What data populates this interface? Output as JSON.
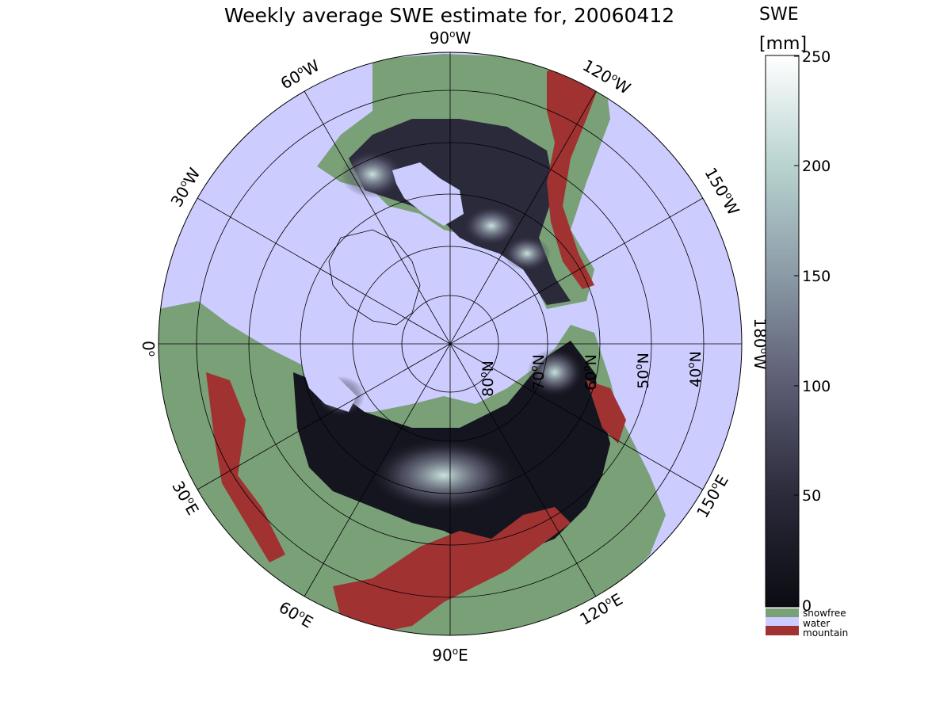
{
  "title": "Weekly average SWE estimate for, 20060412",
  "colorbar": {
    "label_line1": "SWE",
    "label_line2": "[mm]",
    "ticks": [
      "0",
      "50",
      "100",
      "150",
      "200",
      "250"
    ],
    "range": [
      0,
      250
    ],
    "colors": [
      "#0b0b12",
      "#2a2a3a",
      "#5b5b72",
      "#8a9aa6",
      "#b8d3d0",
      "#ffffff"
    ]
  },
  "key": [
    {
      "label": "snowfree",
      "color": "#7aa078"
    },
    {
      "label": "water",
      "color": "#ccccff"
    },
    {
      "label": "mountain",
      "color": "#a03232"
    }
  ],
  "longitude_labels": [
    {
      "text": "90",
      "suffix": "W",
      "lon": 90
    },
    {
      "text": "120",
      "suffix": "W",
      "lon": 120
    },
    {
      "text": "150",
      "suffix": "W",
      "lon": 150
    },
    {
      "text": "180",
      "suffix": "W",
      "lon": 180
    },
    {
      "text": "150",
      "suffix": "E",
      "lon": -150
    },
    {
      "text": "120",
      "suffix": "E",
      "lon": -120
    },
    {
      "text": "90",
      "suffix": "E",
      "lon": -90
    },
    {
      "text": "60",
      "suffix": "E",
      "lon": -60
    },
    {
      "text": "30",
      "suffix": "E",
      "lon": -30
    },
    {
      "text": "0",
      "suffix": "",
      "lon": 0
    },
    {
      "text": "30",
      "suffix": "W",
      "lon": 30
    },
    {
      "text": "60",
      "suffix": "W",
      "lon": 60
    }
  ],
  "latitude_labels": [
    {
      "text": "80",
      "suffix": "N",
      "lat": 80
    },
    {
      "text": "70",
      "suffix": "N",
      "lat": 70
    },
    {
      "text": "60",
      "suffix": "N",
      "lat": 60
    },
    {
      "text": "50",
      "suffix": "N",
      "lat": 50
    },
    {
      "text": "40",
      "suffix": "N",
      "lat": 40
    }
  ],
  "map_colors": {
    "water": "#ccccff",
    "snowfree": "#7aa078",
    "mountain": "#a03232",
    "snow_dark": "#15151f",
    "snow_mid": "#4a4a60",
    "snow_light": "#b8d3d0"
  }
}
